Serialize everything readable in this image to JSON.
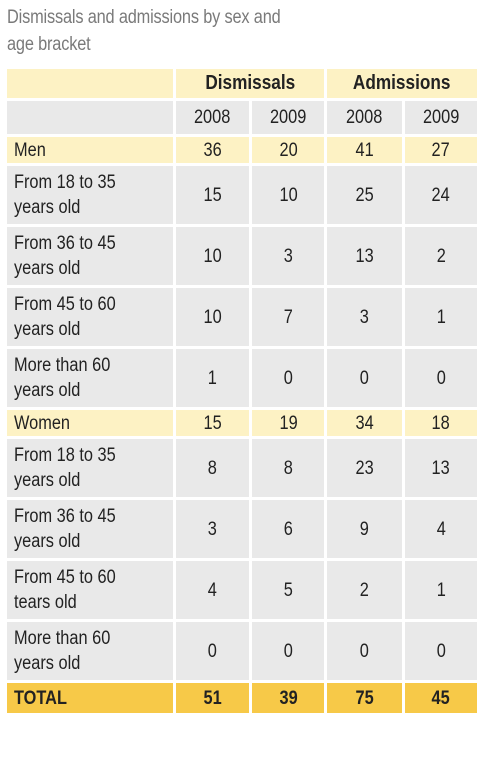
{
  "caption": "Dismissals and admissions by sex and age bracket",
  "header": {
    "dismissals_label": "Dismissals",
    "admissions_label": "Admissions",
    "years": [
      "2008",
      "2009",
      "2008",
      "2009"
    ]
  },
  "rows": [
    {
      "label_lines": [
        "Men"
      ],
      "values": [
        "36",
        "20",
        "41",
        "27"
      ],
      "kind": "subtotal"
    },
    {
      "label_lines": [
        "From 18 to 35",
        "years old"
      ],
      "values": [
        "15",
        "10",
        "25",
        "24"
      ],
      "kind": "detail"
    },
    {
      "label_lines": [
        "From 36 to 45",
        "years old"
      ],
      "values": [
        "10",
        "3",
        "13",
        "2"
      ],
      "kind": "detail"
    },
    {
      "label_lines": [
        "From 45 to 60",
        "years old"
      ],
      "values": [
        "10",
        "7",
        "3",
        "1"
      ],
      "kind": "detail"
    },
    {
      "label_lines": [
        "More than  60",
        "years old"
      ],
      "values": [
        "1",
        "0",
        "0",
        "0"
      ],
      "kind": "detail"
    },
    {
      "label_lines": [
        "Women"
      ],
      "values": [
        "15",
        "19",
        "34",
        "18"
      ],
      "kind": "subtotal"
    },
    {
      "label_lines": [
        "From 18 to 35",
        "years old"
      ],
      "values": [
        "8",
        "8",
        "23",
        "13"
      ],
      "kind": "detail"
    },
    {
      "label_lines": [
        "From 36 to 45",
        "years old"
      ],
      "values": [
        "3",
        "6",
        "9",
        "4"
      ],
      "kind": "detail"
    },
    {
      "label_lines": [
        "From 45 to 60",
        "tears old"
      ],
      "values": [
        "4",
        "5",
        "2",
        "1"
      ],
      "kind": "detail"
    },
    {
      "label_lines": [
        "More than 60",
        "years old"
      ],
      "values": [
        "0",
        "0",
        "0",
        "0"
      ],
      "kind": "detail"
    }
  ],
  "total": {
    "label": "TOTAL",
    "values": [
      "51",
      "39",
      "75",
      "45"
    ]
  },
  "colors": {
    "header_fill": "#fdf2c4",
    "cell_fill": "#e9e9e9",
    "total_fill": "#f7c948",
    "caption_text": "#7a7a7a"
  }
}
